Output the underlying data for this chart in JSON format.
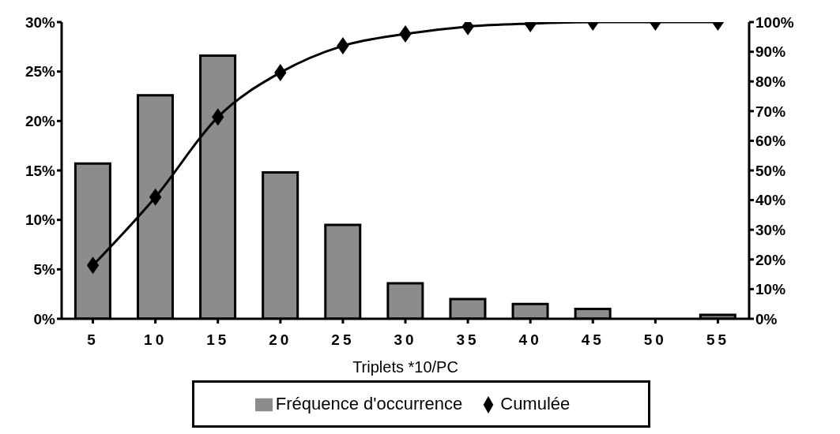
{
  "chart_data": {
    "type": "bar",
    "xlabel": "Triplets  *10/PC",
    "categories": [
      "5",
      "10",
      "15",
      "20",
      "25",
      "30",
      "35",
      "40",
      "45",
      "50",
      "55"
    ],
    "series": [
      {
        "name": "Fréquence d'occurrence",
        "color": "#8c8c8c",
        "values": [
          15.7,
          22.6,
          26.6,
          14.8,
          9.5,
          3.6,
          2.0,
          1.5,
          1.0,
          0,
          0.4
        ]
      },
      {
        "name": "Cumulée",
        "type": "line",
        "axis": "y2",
        "color": "#000000",
        "values": [
          18,
          41,
          68,
          83,
          92,
          96,
          98.5,
          99.5,
          100,
          100,
          100
        ]
      }
    ],
    "ylim": [
      0,
      30
    ],
    "yticks": [
      {
        "value": 0,
        "label": "0%"
      },
      {
        "value": 5,
        "label": "5%"
      },
      {
        "value": 10,
        "label": "10%"
      },
      {
        "value": 15,
        "label": "15%"
      },
      {
        "value": 20,
        "label": "20%"
      },
      {
        "value": 25,
        "label": "25%"
      },
      {
        "value": 30,
        "label": "30%"
      }
    ],
    "y2lim": [
      0,
      100
    ],
    "y2ticks": [
      {
        "value": 0,
        "label": "0%"
      },
      {
        "value": 10,
        "label": "10%"
      },
      {
        "value": 20,
        "label": "20%"
      },
      {
        "value": 30,
        "label": "30%"
      },
      {
        "value": 40,
        "label": "40%"
      },
      {
        "value": 50,
        "label": "50%"
      },
      {
        "value": 60,
        "label": "60%"
      },
      {
        "value": 70,
        "label": "70%"
      },
      {
        "value": 80,
        "label": "80%"
      },
      {
        "value": 90,
        "label": "90%"
      },
      {
        "value": 100,
        "label": "100%"
      }
    ],
    "marker": "diamond",
    "line_style": "solid",
    "legend": "bottom"
  }
}
